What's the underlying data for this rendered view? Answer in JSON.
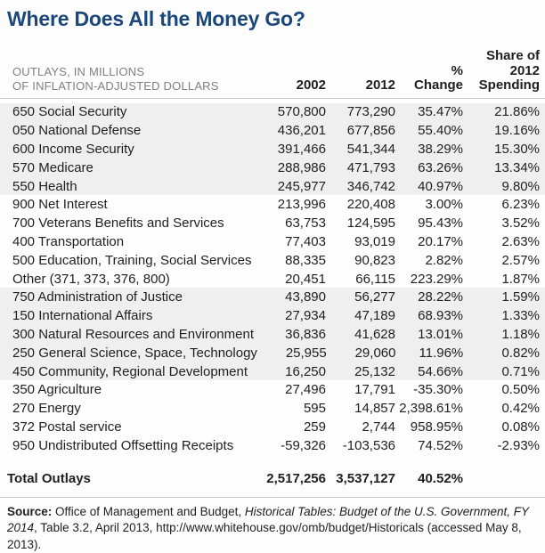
{
  "title": "Where Does All the Money Go?",
  "colors": {
    "title_blue": "#1b477c",
    "header_gray": "#808080",
    "row_shade": "#efefef",
    "rule_gray": "#c9c9c9",
    "text": "#1f1f1f"
  },
  "table_header": {
    "unit_label_line1": "OUTLAYS, IN MILLIONS",
    "unit_label_line2": "OF INFLATION-ADJUSTED DOLLARS",
    "col_2002": "2002",
    "col_2012": "2012",
    "col_change_line1": "%",
    "col_change_line2": "Change",
    "col_share_line1": "Share of",
    "col_share_line2": "2012",
    "col_share_line3": "Spending"
  },
  "chart_data": {
    "type": "table",
    "title": "Where Does All the Money Go?",
    "unit_label": "OUTLAYS, IN MILLIONS OF INFLATION-ADJUSTED DOLLARS",
    "columns": [
      "2002",
      "2012",
      "% Change",
      "Share of 2012 Spending"
    ],
    "rows": [
      {
        "label": "650 Social Security",
        "y2002": "570,800",
        "y2012": "773,290",
        "change": "35.47%",
        "share": "21.86%"
      },
      {
        "label": "050 National Defense",
        "y2002": "436,201",
        "y2012": "677,856",
        "change": "55.40%",
        "share": "19.16%"
      },
      {
        "label": "600 Income Security",
        "y2002": "391,466",
        "y2012": "541,344",
        "change": "38.29%",
        "share": "15.30%"
      },
      {
        "label": "570 Medicare",
        "y2002": "288,986",
        "y2012": "471,793",
        "change": "63.26%",
        "share": "13.34%"
      },
      {
        "label": "550 Health",
        "y2002": "245,977",
        "y2012": "346,742",
        "change": "40.97%",
        "share": "9.80%"
      },
      {
        "label": "900 Net Interest",
        "y2002": "213,996",
        "y2012": "220,408",
        "change": "3.00%",
        "share": "6.23%"
      },
      {
        "label": "700 Veterans Benefits and Services",
        "y2002": "63,753",
        "y2012": "124,595",
        "change": "95.43%",
        "share": "3.52%"
      },
      {
        "label": "400 Transportation",
        "y2002": "77,403",
        "y2012": "93,019",
        "change": "20.17%",
        "share": "2.63%"
      },
      {
        "label": "500 Education, Training, Social Services",
        "y2002": "88,335",
        "y2012": "90,823",
        "change": "2.82%",
        "share": "2.57%"
      },
      {
        "label": "Other (371, 373, 376, 800)",
        "y2002": "20,451",
        "y2012": "66,115",
        "change": "223.29%",
        "share": "1.87%"
      },
      {
        "label": "750 Administration of Justice",
        "y2002": "43,890",
        "y2012": "56,277",
        "change": "28.22%",
        "share": "1.59%"
      },
      {
        "label": "150 International Affairs",
        "y2002": "27,934",
        "y2012": "47,189",
        "change": "68.93%",
        "share": "1.33%"
      },
      {
        "label": "300 Natural Resources and Environment",
        "y2002": "36,836",
        "y2012": "41,628",
        "change": "13.01%",
        "share": "1.18%"
      },
      {
        "label": "250 General Science, Space, Technology",
        "y2002": "25,955",
        "y2012": "29,060",
        "change": "11.96%",
        "share": "0.82%"
      },
      {
        "label": "450 Community, Regional Development",
        "y2002": "16,250",
        "y2012": "25,132",
        "change": "54.66%",
        "share": "0.71%"
      },
      {
        "label": "350 Agriculture",
        "y2002": "27,496",
        "y2012": "17,791",
        "change": "-35.30%",
        "share": "0.50%"
      },
      {
        "label": "270 Energy",
        "y2002": "595",
        "y2012": "14,857",
        "change": "2,398.61%",
        "share": "0.42%"
      },
      {
        "label": "372 Postal service",
        "y2002": "259",
        "y2012": "2,744",
        "change": "958.95%",
        "share": "0.08%"
      },
      {
        "label": "950 Undistributed Offsetting Receipts",
        "y2002": "-59,326",
        "y2012": "-103,536",
        "change": "74.52%",
        "share": "-2.93%"
      }
    ],
    "total": {
      "label": "Total Outlays",
      "y2002": "2,517,256",
      "y2012": "3,537,127",
      "change": "40.52%",
      "share": ""
    }
  },
  "source": {
    "segments": [
      {
        "text": "Source:",
        "style": "bold"
      },
      {
        "text": " Office of Management and Budget, ",
        "style": "normal"
      },
      {
        "text": "Historical Tables: Budget of the U.S. Government, FY 2014",
        "style": "italic"
      },
      {
        "text": ", Table 3.2, April 2013, http://www.whitehouse.gov/omb/budget/Historicals (accessed May 8, 2013).",
        "style": "normal"
      }
    ]
  }
}
